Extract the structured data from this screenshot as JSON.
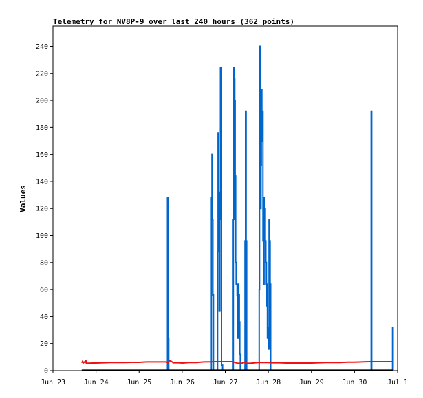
{
  "chart_data": {
    "type": "line",
    "title": "Telemetry for NV8P-9 over last 240 hours (362 points)",
    "xlabel": "",
    "ylabel": "Values",
    "xlim": [
      "2023-06-23 00:00",
      "2023-07-01 00:00"
    ],
    "ylim": [
      0,
      255
    ],
    "y_ticks": [
      0,
      20,
      40,
      60,
      80,
      100,
      120,
      140,
      160,
      180,
      200,
      220,
      240
    ],
    "x_ticks": [
      {
        "t": 0,
        "label": "Jun 23"
      },
      {
        "t": 24,
        "label": "Jun 24"
      },
      {
        "t": 48,
        "label": "Jun 25"
      },
      {
        "t": 72,
        "label": "Jun 26"
      },
      {
        "t": 96,
        "label": "Jun 27"
      },
      {
        "t": 120,
        "label": "Jun 28"
      },
      {
        "t": 144,
        "label": "Jun 29"
      },
      {
        "t": 168,
        "label": "Jun 30"
      },
      {
        "t": 192,
        "label": "Jul 1"
      }
    ],
    "grid": false,
    "legend": "none",
    "series": [
      {
        "color": "#0066cc",
        "values": [
          [
            16.0,
            0
          ],
          [
            63.8,
            0
          ],
          [
            63.8,
            128
          ],
          [
            64.0,
            128
          ],
          [
            64.0,
            0
          ],
          [
            64.3,
            0
          ],
          [
            64.3,
            24
          ],
          [
            64.5,
            24
          ],
          [
            64.5,
            0
          ],
          [
            88.3,
            0
          ],
          [
            88.3,
            128
          ],
          [
            88.6,
            128
          ],
          [
            88.6,
            160
          ],
          [
            88.9,
            160
          ],
          [
            88.9,
            112
          ],
          [
            89.1,
            112
          ],
          [
            89.1,
            56
          ],
          [
            89.4,
            56
          ],
          [
            89.4,
            0
          ],
          [
            91.7,
            0
          ],
          [
            91.7,
            88
          ],
          [
            92.0,
            88
          ],
          [
            92.0,
            176
          ],
          [
            92.3,
            176
          ],
          [
            92.3,
            132
          ],
          [
            92.6,
            132
          ],
          [
            92.6,
            44
          ],
          [
            93.0,
            44
          ],
          [
            93.0,
            112
          ],
          [
            93.3,
            112
          ],
          [
            93.3,
            224
          ],
          [
            93.9,
            224
          ],
          [
            93.9,
            4
          ],
          [
            94.5,
            4
          ],
          [
            94.5,
            0
          ],
          [
            100.5,
            0
          ],
          [
            100.5,
            112
          ],
          [
            100.8,
            112
          ],
          [
            100.8,
            224
          ],
          [
            101.1,
            224
          ],
          [
            101.1,
            216
          ],
          [
            101.3,
            216
          ],
          [
            101.3,
            200
          ],
          [
            101.5,
            200
          ],
          [
            101.5,
            144
          ],
          [
            101.8,
            144
          ],
          [
            101.8,
            80
          ],
          [
            102.1,
            80
          ],
          [
            102.1,
            64
          ],
          [
            102.6,
            64
          ],
          [
            102.6,
            56
          ],
          [
            103.0,
            56
          ],
          [
            103.0,
            24
          ],
          [
            103.2,
            24
          ],
          [
            103.2,
            64
          ],
          [
            103.5,
            64
          ],
          [
            103.5,
            56
          ],
          [
            103.8,
            56
          ],
          [
            103.8,
            36
          ],
          [
            104.1,
            36
          ],
          [
            104.1,
            12
          ],
          [
            104.4,
            12
          ],
          [
            104.4,
            0
          ],
          [
            107.0,
            0
          ],
          [
            107.0,
            96
          ],
          [
            107.3,
            96
          ],
          [
            107.3,
            192
          ],
          [
            107.6,
            192
          ],
          [
            107.6,
            96
          ],
          [
            107.9,
            96
          ],
          [
            107.9,
            0
          ],
          [
            114.9,
            0
          ],
          [
            114.9,
            60
          ],
          [
            115.1,
            60
          ],
          [
            115.1,
            180
          ],
          [
            115.3,
            180
          ],
          [
            115.3,
            240
          ],
          [
            115.6,
            240
          ],
          [
            115.6,
            120
          ],
          [
            115.9,
            120
          ],
          [
            115.9,
            152
          ],
          [
            116.1,
            152
          ],
          [
            116.1,
            208
          ],
          [
            116.4,
            208
          ],
          [
            116.4,
            170
          ],
          [
            116.7,
            170
          ],
          [
            116.7,
            192
          ],
          [
            117.0,
            192
          ],
          [
            117.0,
            96
          ],
          [
            117.3,
            96
          ],
          [
            117.3,
            64
          ],
          [
            117.6,
            64
          ],
          [
            117.6,
            128
          ],
          [
            118.0,
            128
          ],
          [
            118.0,
            120
          ],
          [
            118.3,
            120
          ],
          [
            118.3,
            96
          ],
          [
            118.6,
            96
          ],
          [
            118.6,
            80
          ],
          [
            118.9,
            80
          ],
          [
            118.9,
            64
          ],
          [
            119.2,
            64
          ],
          [
            119.2,
            48
          ],
          [
            119.5,
            48
          ],
          [
            119.5,
            24
          ],
          [
            119.8,
            24
          ],
          [
            119.8,
            32
          ],
          [
            120.1,
            32
          ],
          [
            120.1,
            16
          ],
          [
            120.4,
            16
          ],
          [
            120.4,
            112
          ],
          [
            120.7,
            112
          ],
          [
            120.7,
            96
          ],
          [
            121.0,
            96
          ],
          [
            121.0,
            64
          ],
          [
            121.3,
            64
          ],
          [
            121.3,
            0
          ],
          [
            177.3,
            0
          ],
          [
            177.3,
            192
          ],
          [
            177.6,
            192
          ],
          [
            177.6,
            0
          ],
          [
            189.2,
            0
          ],
          [
            189.2,
            32
          ],
          [
            189.5,
            32
          ],
          [
            189.5,
            0
          ]
        ]
      },
      {
        "color": "#ee1111",
        "values": [
          [
            16.0,
            5.8
          ],
          [
            16.5,
            6.9
          ],
          [
            17.0,
            5.8
          ],
          [
            17.5,
            6.4
          ],
          [
            18.0,
            6.2
          ],
          [
            18.3,
            7.6
          ],
          [
            18.6,
            5.5
          ],
          [
            20.0,
            5.5
          ],
          [
            22.0,
            5.6
          ],
          [
            24.0,
            5.6
          ],
          [
            28.0,
            5.8
          ],
          [
            32.0,
            6.0
          ],
          [
            36.0,
            6.0
          ],
          [
            40.0,
            6.0
          ],
          [
            44.0,
            6.1
          ],
          [
            48.0,
            6.1
          ],
          [
            52.0,
            6.4
          ],
          [
            56.0,
            6.4
          ],
          [
            60.0,
            6.4
          ],
          [
            63.0,
            6.4
          ],
          [
            64.0,
            5.8
          ],
          [
            65.0,
            7.4
          ],
          [
            66.0,
            6.8
          ],
          [
            67.0,
            5.8
          ],
          [
            70.0,
            5.8
          ],
          [
            72.0,
            5.6
          ],
          [
            74.0,
            5.8
          ],
          [
            76.0,
            6.0
          ],
          [
            80.0,
            6.0
          ],
          [
            84.0,
            6.4
          ],
          [
            88.0,
            6.5
          ],
          [
            90.0,
            6.6
          ],
          [
            92.0,
            6.6
          ],
          [
            94.0,
            6.6
          ],
          [
            96.0,
            6.6
          ],
          [
            100.0,
            6.6
          ],
          [
            103.0,
            5.4
          ],
          [
            105.0,
            5.4
          ],
          [
            107.0,
            6.2
          ],
          [
            108.0,
            5.4
          ],
          [
            110.0,
            5.4
          ],
          [
            114.0,
            6.0
          ],
          [
            116.0,
            6.0
          ],
          [
            118.0,
            6.0
          ],
          [
            120.0,
            6.0
          ],
          [
            122.0,
            5.8
          ],
          [
            126.0,
            5.8
          ],
          [
            130.0,
            5.6
          ],
          [
            134.0,
            5.6
          ],
          [
            138.0,
            5.6
          ],
          [
            140.0,
            5.6
          ],
          [
            144.0,
            5.6
          ],
          [
            148.0,
            5.8
          ],
          [
            152.0,
            6.0
          ],
          [
            156.0,
            6.0
          ],
          [
            160.0,
            6.0
          ],
          [
            164.0,
            6.2
          ],
          [
            168.0,
            6.2
          ],
          [
            172.0,
            6.4
          ],
          [
            176.0,
            6.6
          ],
          [
            180.0,
            6.6
          ],
          [
            184.0,
            6.6
          ],
          [
            188.0,
            6.6
          ],
          [
            189.5,
            6.6
          ]
        ]
      },
      {
        "color": "#000000",
        "values": [
          [
            16.0,
            0.3
          ],
          [
            189.5,
            0.3
          ]
        ]
      }
    ]
  }
}
